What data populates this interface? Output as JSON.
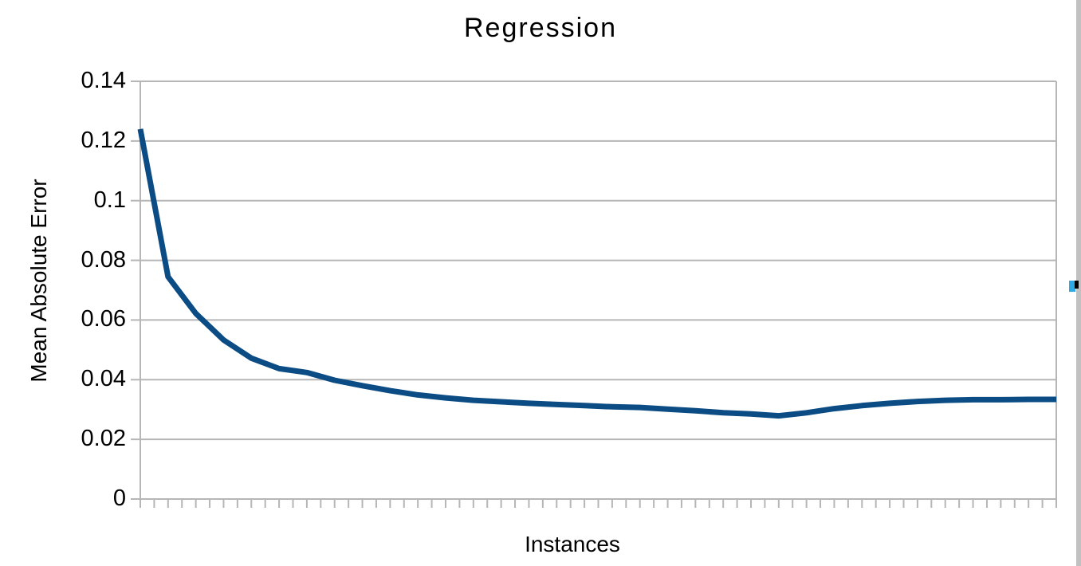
{
  "window": {
    "background": "#ffffff",
    "scrollbar": {
      "track_color": "#c1c1c1",
      "marker_cyan_color": "#2ea9e4",
      "marker_black_color": "#000000"
    }
  },
  "chart_data": {
    "type": "line",
    "title": "Regression",
    "xlabel": "Instances",
    "ylabel": "Mean Absolute Error",
    "ylim": [
      0,
      0.14
    ],
    "y_tick_labels": [
      "0.14",
      "0.12",
      "0.1",
      "0.08",
      "0.06",
      "0.04",
      "0.02",
      "0"
    ],
    "x_tick_labels": "none",
    "x_tick_intervals": 66,
    "grid": "horizontal",
    "legend": "none",
    "colors": {
      "series": "#0b4c84",
      "grid_and_axes": "#b6b6b6"
    },
    "series": [
      {
        "name": "Mean Absolute Error",
        "color": "#0b4c84",
        "values": [
          0.124,
          0.0745,
          0.0622,
          0.0533,
          0.0472,
          0.0437,
          0.0424,
          0.0398,
          0.038,
          0.0363,
          0.0349,
          0.0339,
          0.0331,
          0.0326,
          0.0321,
          0.0317,
          0.0313,
          0.0309,
          0.0307,
          0.0301,
          0.0296,
          0.0289,
          0.0285,
          0.0279,
          0.0289,
          0.0303,
          0.0313,
          0.0321,
          0.0327,
          0.0331,
          0.0333,
          0.0333,
          0.0334,
          0.0334
        ]
      }
    ]
  }
}
